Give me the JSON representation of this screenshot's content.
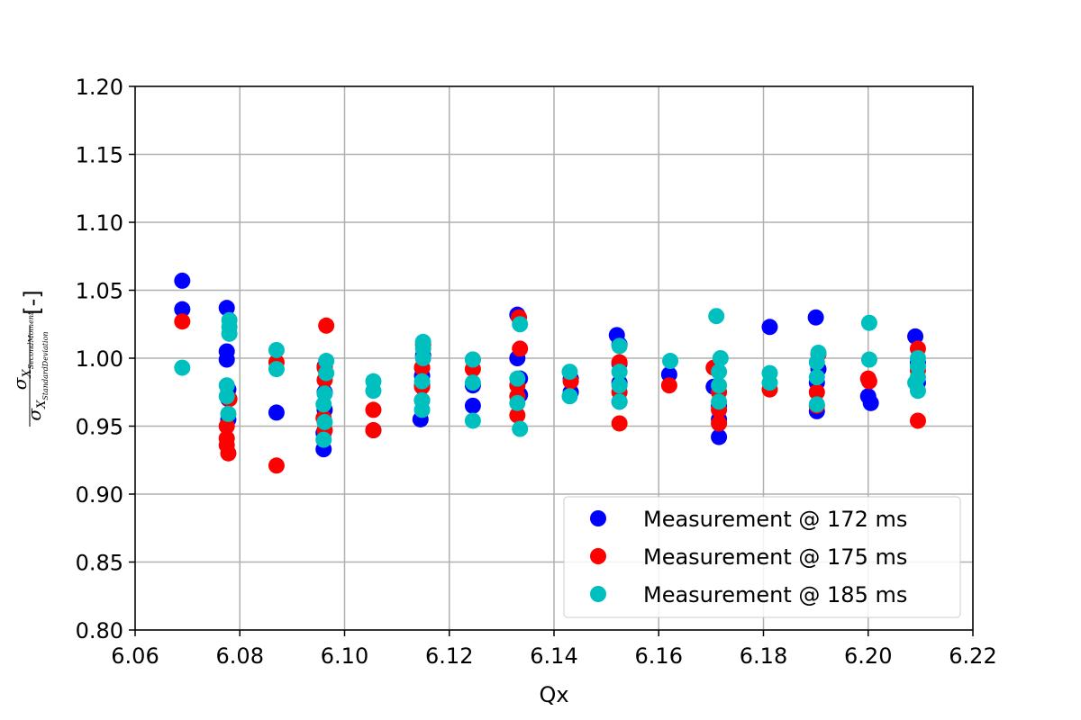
{
  "chart_data": {
    "type": "scatter",
    "xlabel": "Qx",
    "ylabel": {
      "sigma": "σ",
      "num_sub": "X",
      "num_subsub": "SecondMoment",
      "den_sub": "X",
      "den_subsub": "StandardDeviation",
      "unit": "[-]"
    },
    "xlim": [
      6.06,
      6.22
    ],
    "ylim": [
      0.8,
      1.2
    ],
    "xticks": [
      "6.06",
      "6.08",
      "6.10",
      "6.12",
      "6.14",
      "6.16",
      "6.18",
      "6.20",
      "6.22"
    ],
    "yticks": [
      "0.80",
      "0.85",
      "0.90",
      "0.95",
      "1.00",
      "1.05",
      "1.10",
      "1.15",
      "1.20"
    ],
    "grid": true,
    "legend_position": "lower-right",
    "series": [
      {
        "name": "Measurement @ 172 ms",
        "color": "#0000ff",
        "points": [
          [
            6.069,
            1.057
          ],
          [
            6.069,
            1.036
          ],
          [
            6.0775,
            1.037
          ],
          [
            6.0775,
            1.005
          ],
          [
            6.0775,
            0.999
          ],
          [
            6.0778,
            0.977
          ],
          [
            6.0778,
            0.97
          ],
          [
            6.0778,
            0.955
          ],
          [
            6.087,
            0.96
          ],
          [
            6.096,
            0.933
          ],
          [
            6.096,
            0.945
          ],
          [
            6.0962,
            0.962
          ],
          [
            6.0962,
            0.975
          ],
          [
            6.0962,
            0.994
          ],
          [
            6.1055,
            0.947
          ],
          [
            6.1145,
            0.955
          ],
          [
            6.1148,
            0.969
          ],
          [
            6.1148,
            0.98
          ],
          [
            6.1148,
            0.987
          ],
          [
            6.1148,
            0.993
          ],
          [
            6.115,
            1.002
          ],
          [
            6.1245,
            0.965
          ],
          [
            6.1245,
            0.98
          ],
          [
            6.133,
            1.032
          ],
          [
            6.133,
            1.0
          ],
          [
            6.1335,
            0.973
          ],
          [
            6.1335,
            0.985
          ],
          [
            6.1432,
            0.975
          ],
          [
            6.1432,
            0.985
          ],
          [
            6.152,
            1.017
          ],
          [
            6.1525,
            1.01
          ],
          [
            6.1525,
            0.996
          ],
          [
            6.1525,
            0.982
          ],
          [
            6.1525,
            0.968
          ],
          [
            6.162,
            0.988
          ],
          [
            6.1705,
            0.979
          ],
          [
            6.1715,
            0.942
          ],
          [
            6.1715,
            0.955
          ],
          [
            6.1715,
            0.965
          ],
          [
            6.1812,
            1.023
          ],
          [
            6.19,
            1.03
          ],
          [
            6.1902,
            0.982
          ],
          [
            6.1902,
            0.961
          ],
          [
            6.1905,
            0.992
          ],
          [
            6.2,
            0.972
          ],
          [
            6.2005,
            0.967
          ],
          [
            6.209,
            1.016
          ],
          [
            6.2095,
            0.997
          ],
          [
            6.2095,
            0.982
          ]
        ]
      },
      {
        "name": "Measurement @ 175 ms",
        "color": "#ff0000",
        "points": [
          [
            6.069,
            1.027
          ],
          [
            6.0775,
            0.95
          ],
          [
            6.0775,
            0.941
          ],
          [
            6.0775,
            0.936
          ],
          [
            6.0778,
            0.93
          ],
          [
            6.078,
            0.97
          ],
          [
            6.087,
            0.921
          ],
          [
            6.087,
            0.997
          ],
          [
            6.096,
            0.956
          ],
          [
            6.0962,
            0.947
          ],
          [
            6.0962,
            0.984
          ],
          [
            6.0962,
            0.993
          ],
          [
            6.0965,
            1.024
          ],
          [
            6.1055,
            0.962
          ],
          [
            6.1055,
            0.947
          ],
          [
            6.1148,
            0.979
          ],
          [
            6.1148,
            0.993
          ],
          [
            6.115,
            1.01
          ],
          [
            6.1245,
            0.992
          ],
          [
            6.1245,
            0.999
          ],
          [
            6.133,
            0.958
          ],
          [
            6.133,
            0.972
          ],
          [
            6.133,
            0.98
          ],
          [
            6.1333,
            1.03
          ],
          [
            6.1335,
            1.007
          ],
          [
            6.1432,
            0.983
          ],
          [
            6.1525,
            0.952
          ],
          [
            6.1525,
            0.997
          ],
          [
            6.1525,
            0.975
          ],
          [
            6.162,
            0.98
          ],
          [
            6.1705,
            0.993
          ],
          [
            6.1715,
            0.952
          ],
          [
            6.1715,
            0.962
          ],
          [
            6.1715,
            0.975
          ],
          [
            6.1812,
            0.977
          ],
          [
            6.1902,
            0.965
          ],
          [
            6.1902,
            0.975
          ],
          [
            6.1905,
            1.003
          ],
          [
            6.2,
            0.985
          ],
          [
            6.2002,
            0.983
          ],
          [
            6.2095,
            0.954
          ],
          [
            6.2095,
            1.007
          ],
          [
            6.2095,
            0.991
          ]
        ]
      },
      {
        "name": "Measurement @ 185 ms",
        "color": "#00bfbf",
        "points": [
          [
            6.069,
            0.993
          ],
          [
            6.0775,
            0.972
          ],
          [
            6.0775,
            0.98
          ],
          [
            6.0778,
            0.959
          ],
          [
            6.078,
            1.018
          ],
          [
            6.078,
            1.023
          ],
          [
            6.078,
            1.028
          ],
          [
            6.087,
            1.006
          ],
          [
            6.087,
            0.992
          ],
          [
            6.096,
            0.94
          ],
          [
            6.096,
            0.966
          ],
          [
            6.0962,
            0.953
          ],
          [
            6.0962,
            0.974
          ],
          [
            6.0965,
            0.989
          ],
          [
            6.0965,
            0.998
          ],
          [
            6.1055,
            0.983
          ],
          [
            6.1055,
            0.976
          ],
          [
            6.1148,
            0.962
          ],
          [
            6.1148,
            0.969
          ],
          [
            6.1148,
            0.983
          ],
          [
            6.115,
            1.0
          ],
          [
            6.115,
            1.007
          ],
          [
            6.115,
            1.012
          ],
          [
            6.1245,
            0.954
          ],
          [
            6.1245,
            0.982
          ],
          [
            6.1245,
            0.999
          ],
          [
            6.133,
            0.967
          ],
          [
            6.133,
            0.985
          ],
          [
            6.1335,
            0.948
          ],
          [
            6.1335,
            1.025
          ],
          [
            6.143,
            0.972
          ],
          [
            6.143,
            0.99
          ],
          [
            6.1525,
            0.968
          ],
          [
            6.1525,
            0.98
          ],
          [
            6.1525,
            0.99
          ],
          [
            6.1525,
            1.009
          ],
          [
            6.1622,
            0.998
          ],
          [
            6.171,
            1.031
          ],
          [
            6.1715,
            0.968
          ],
          [
            6.1715,
            0.98
          ],
          [
            6.1715,
            0.99
          ],
          [
            6.1718,
            1.0
          ],
          [
            6.1812,
            0.982
          ],
          [
            6.1812,
            0.989
          ],
          [
            6.1902,
            0.966
          ],
          [
            6.1902,
            0.986
          ],
          [
            6.1902,
            0.997
          ],
          [
            6.1905,
            1.004
          ],
          [
            6.2002,
            1.026
          ],
          [
            6.2002,
            0.999
          ],
          [
            6.209,
            0.982
          ],
          [
            6.2095,
            0.976
          ],
          [
            6.2095,
            0.986
          ],
          [
            6.2095,
            0.994
          ],
          [
            6.2095,
            1.0
          ]
        ]
      }
    ]
  }
}
